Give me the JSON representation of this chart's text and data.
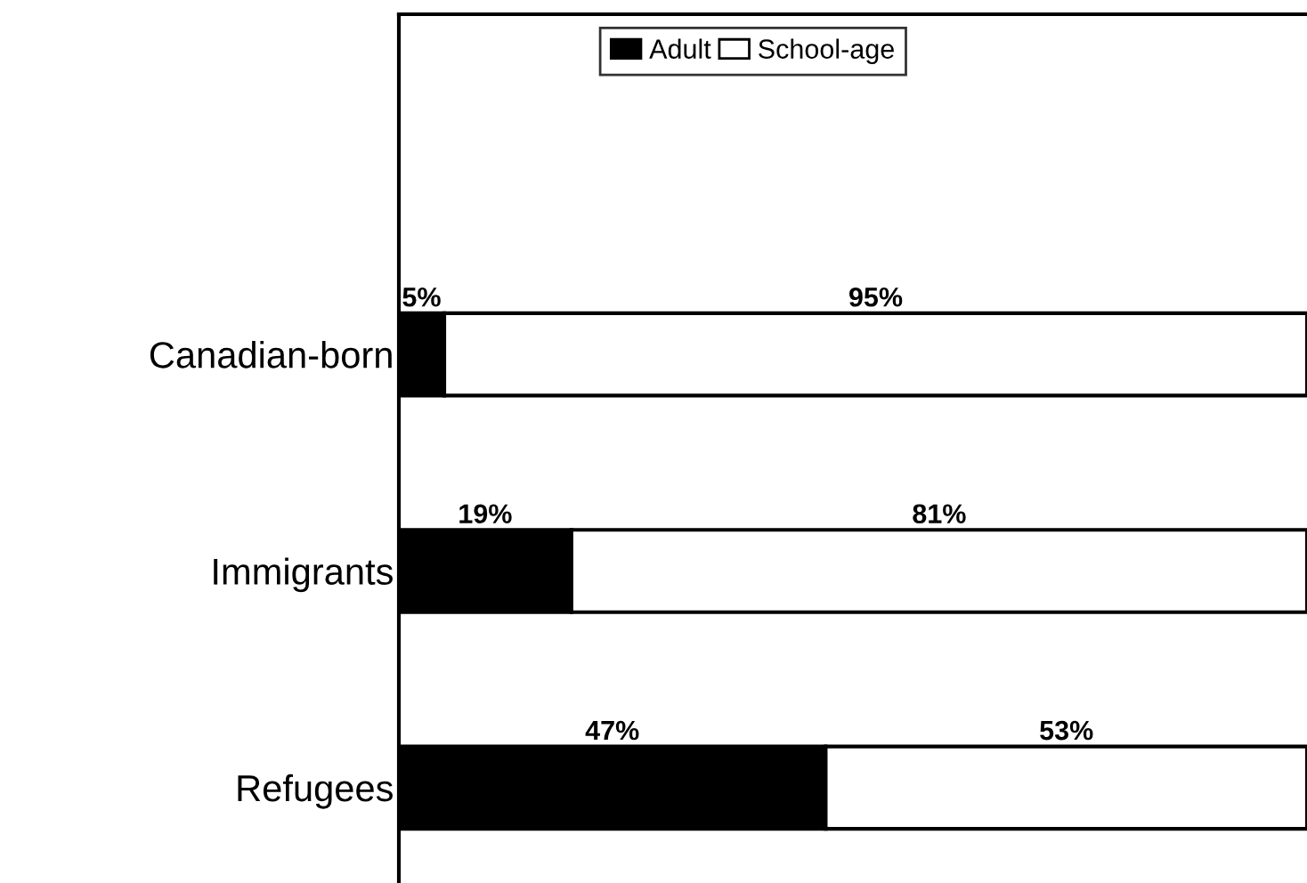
{
  "chart_data": {
    "type": "bar",
    "orientation": "horizontal",
    "stacked": true,
    "categories": [
      "Canadian-born",
      "Immigrants",
      "Refugees"
    ],
    "series": [
      {
        "name": "Adult",
        "color": "#000000",
        "values": [
          5,
          19,
          47
        ],
        "value_labels": [
          "5%",
          "19%",
          "47%"
        ]
      },
      {
        "name": "School-age",
        "color": "#ffffff",
        "values": [
          95,
          81,
          53
        ],
        "value_labels": [
          "95%",
          "81%",
          "53%"
        ]
      }
    ],
    "legend": "top"
  }
}
